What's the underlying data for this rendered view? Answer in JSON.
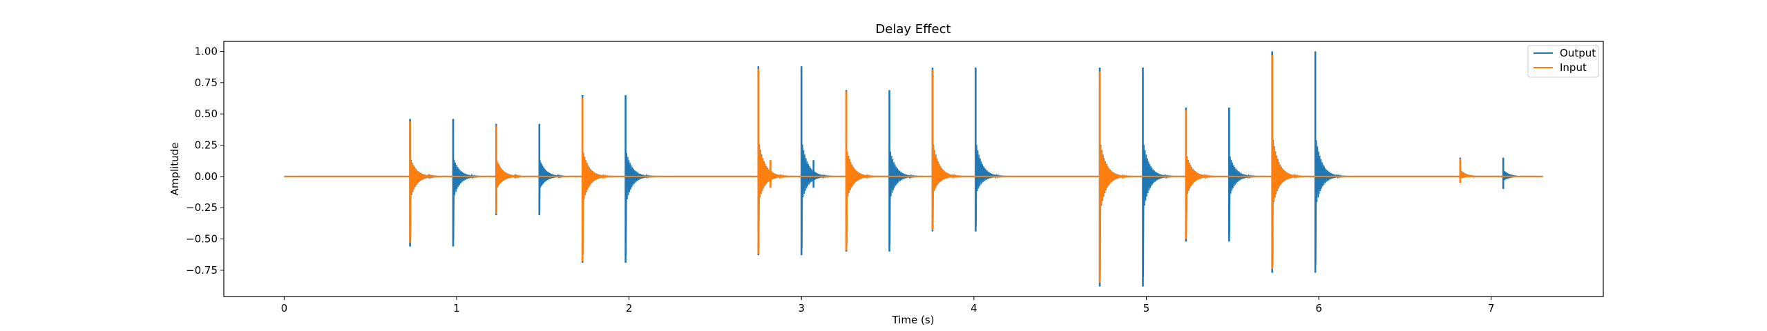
{
  "chart_data": {
    "type": "line",
    "title": "Delay Effect",
    "xlabel": "Time (s)",
    "ylabel": "Amplitude",
    "xlim": [
      -0.35,
      7.65
    ],
    "ylim": [
      -0.96,
      1.08
    ],
    "x_ticks": [
      0,
      1,
      2,
      3,
      4,
      5,
      6,
      7
    ],
    "x_tick_labels": [
      "0",
      "1",
      "2",
      "3",
      "4",
      "5",
      "6",
      "7"
    ],
    "y_ticks": [
      1.0,
      0.75,
      0.5,
      0.25,
      0.0,
      -0.25,
      -0.5,
      -0.75
    ],
    "y_tick_labels": [
      "1.00",
      "0.75",
      "0.50",
      "0.25",
      "0.00",
      "−0.25",
      "−0.50",
      "−0.75"
    ],
    "grid": false,
    "legend_position": "top-right",
    "duration": 7.3,
    "series": [
      {
        "name": "Output",
        "color": "#1f77b4",
        "transients": [
          {
            "t": 0.73,
            "peak": 0.46,
            "trough": -0.56
          },
          {
            "t": 0.98,
            "peak": 0.46,
            "trough": -0.56
          },
          {
            "t": 1.23,
            "peak": 0.42,
            "trough": -0.31
          },
          {
            "t": 1.48,
            "peak": 0.42,
            "trough": -0.31
          },
          {
            "t": 1.73,
            "peak": 0.65,
            "trough": -0.69
          },
          {
            "t": 1.98,
            "peak": 0.65,
            "trough": -0.69
          },
          {
            "t": 2.75,
            "peak": 0.88,
            "trough": -0.63
          },
          {
            "t": 2.82,
            "peak": 0.13,
            "trough": -0.09
          },
          {
            "t": 3.0,
            "peak": 0.88,
            "trough": -0.63
          },
          {
            "t": 3.07,
            "peak": 0.13,
            "trough": -0.09
          },
          {
            "t": 3.26,
            "peak": 0.69,
            "trough": -0.6
          },
          {
            "t": 3.51,
            "peak": 0.69,
            "trough": -0.6
          },
          {
            "t": 3.76,
            "peak": 0.87,
            "trough": -0.44
          },
          {
            "t": 4.01,
            "peak": 0.87,
            "trough": -0.44
          },
          {
            "t": 4.73,
            "peak": 0.87,
            "trough": -0.88
          },
          {
            "t": 4.98,
            "peak": 0.87,
            "trough": -0.88
          },
          {
            "t": 5.23,
            "peak": 0.55,
            "trough": -0.52
          },
          {
            "t": 5.48,
            "peak": 0.55,
            "trough": -0.52
          },
          {
            "t": 5.73,
            "peak": 1.0,
            "trough": -0.77
          },
          {
            "t": 5.98,
            "peak": 1.0,
            "trough": -0.77
          },
          {
            "t": 6.82,
            "peak": 0.15,
            "trough": -0.05
          },
          {
            "t": 7.07,
            "peak": 0.15,
            "trough": -0.1
          }
        ]
      },
      {
        "name": "Input",
        "color": "#ff7f0e",
        "transients": [
          {
            "t": 0.73,
            "peak": 0.44,
            "trough": -0.53
          },
          {
            "t": 1.23,
            "peak": 0.41,
            "trough": -0.3
          },
          {
            "t": 1.73,
            "peak": 0.63,
            "trough": -0.68
          },
          {
            "t": 2.75,
            "peak": 0.86,
            "trough": -0.62
          },
          {
            "t": 2.82,
            "peak": 0.13,
            "trough": -0.09
          },
          {
            "t": 3.26,
            "peak": 0.68,
            "trough": -0.59
          },
          {
            "t": 3.76,
            "peak": 0.85,
            "trough": -0.43
          },
          {
            "t": 4.73,
            "peak": 0.84,
            "trough": -0.85
          },
          {
            "t": 5.23,
            "peak": 0.53,
            "trough": -0.5
          },
          {
            "t": 5.73,
            "peak": 0.97,
            "trough": -0.74
          },
          {
            "t": 6.82,
            "peak": 0.14,
            "trough": -0.05
          }
        ]
      }
    ]
  }
}
